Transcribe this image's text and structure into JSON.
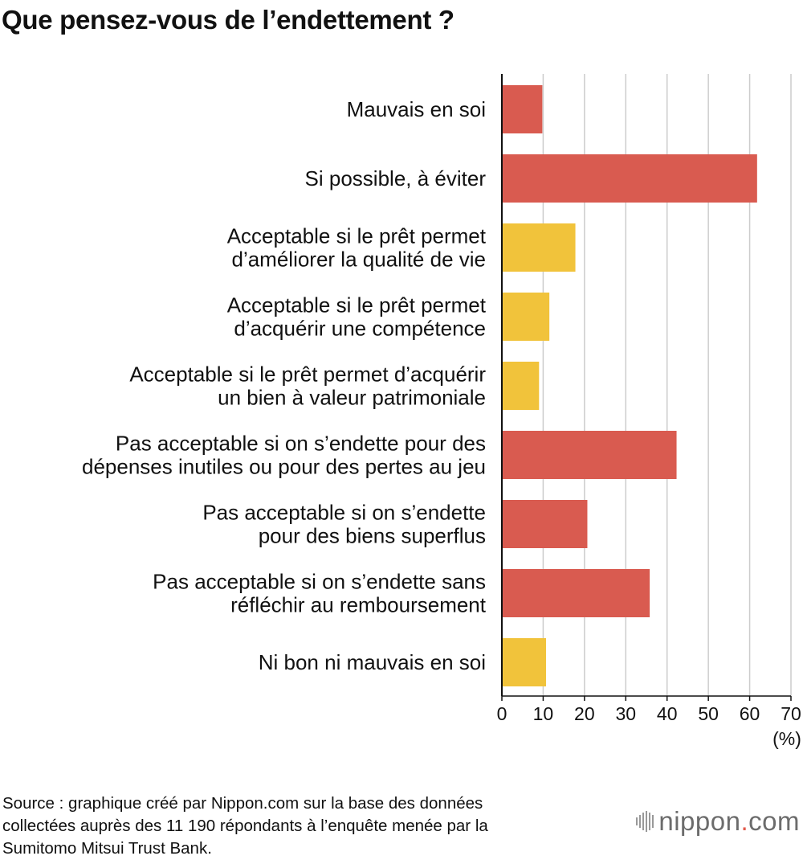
{
  "chart_data": {
    "type": "bar",
    "orientation": "horizontal",
    "title": "Que pensez-vous de l’endettement ?",
    "categories": [
      [
        "Mauvais en soi"
      ],
      [
        "Si possible, à éviter"
      ],
      [
        "Acceptable si le prêt permet",
        "d’améliorer la qualité de vie"
      ],
      [
        "Acceptable si le prêt permet",
        "d’acquérir une compétence"
      ],
      [
        "Acceptable si le prêt permet d’acquérir",
        "un bien à valeur patrimoniale"
      ],
      [
        "Pas acceptable si on s’endette pour des",
        "dépenses inutiles ou pour des pertes au jeu"
      ],
      [
        "Pas acceptable si on s’endette",
        "pour des biens superflus"
      ],
      [
        "Pas acceptable si on s’endette sans",
        "réfléchir au remboursement"
      ],
      [
        "Ni bon ni mauvais en soi"
      ]
    ],
    "values": [
      9.8,
      61.8,
      17.8,
      11.5,
      9.0,
      42.3,
      20.7,
      35.8,
      10.7
    ],
    "bar_colors": [
      "#d95b50",
      "#d95b50",
      "#f1c33b",
      "#f1c33b",
      "#f1c33b",
      "#d95b50",
      "#d95b50",
      "#d95b50",
      "#f1c33b"
    ],
    "xlim": [
      0,
      70
    ],
    "xticks": [
      0,
      10,
      20,
      30,
      40,
      50,
      60,
      70
    ],
    "xlabel": "(%)",
    "grid": true
  },
  "source": [
    "Source : graphique créé par Nippon.com sur la base des données",
    "collectées auprès des 11 190 répondants à l’enquête menée par la",
    "Sumitomo Mitsui Trust Bank."
  ],
  "logo": {
    "name": "nippon",
    "dot": ".",
    "suffix": "com"
  },
  "colors": {
    "grid": "#cccccc",
    "axis": "#111111"
  }
}
